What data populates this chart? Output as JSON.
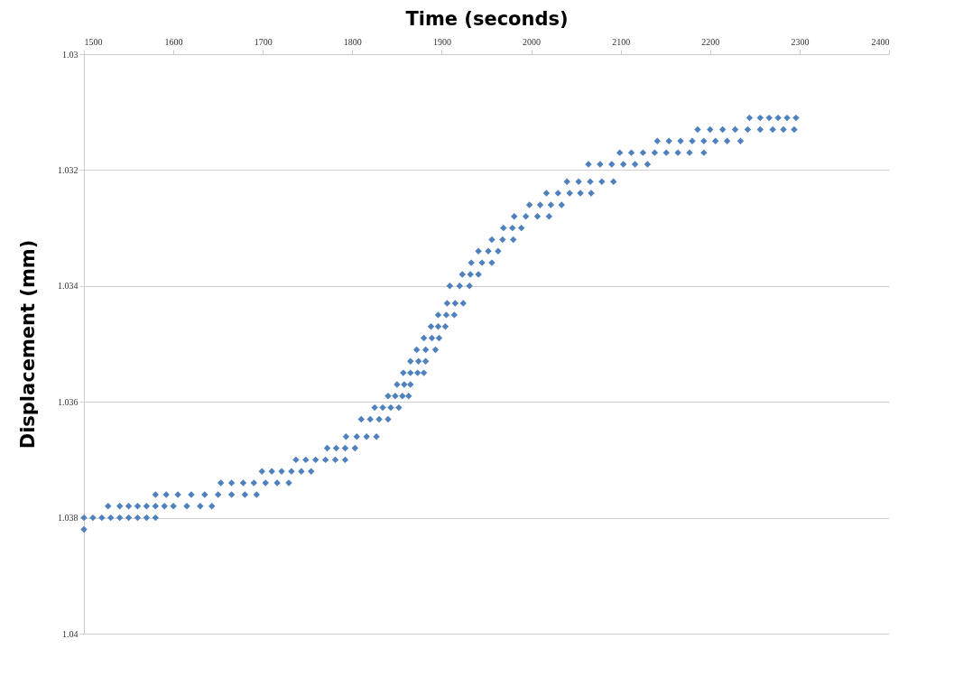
{
  "chart_data": {
    "type": "scatter",
    "xlabel": "Time (seconds)",
    "ylabel": "Displacement (mm)",
    "xlim": [
      1500,
      2400
    ],
    "xticks": [
      1500,
      1600,
      1700,
      1800,
      1900,
      2000,
      2100,
      2200,
      2300,
      2400
    ],
    "ylim": [
      1.04,
      1.03
    ],
    "yticks": [
      1.03,
      1.032,
      1.034,
      1.036,
      1.038,
      1.04
    ],
    "grid": "y",
    "marker": "diamond",
    "legend": false,
    "series": [
      {
        "color": "#4f81bd",
        "x": [
          1500,
          1500,
          1510,
          1520,
          1530,
          1540,
          1550,
          1560,
          1570,
          1580,
          1527,
          1540,
          1550,
          1560,
          1570,
          1580,
          1590,
          1600,
          1615,
          1630,
          1643,
          1580,
          1592,
          1605,
          1620,
          1635,
          1650,
          1665,
          1680,
          1693,
          1653,
          1665,
          1678,
          1690,
          1703,
          1716,
          1729,
          1699,
          1710,
          1721,
          1732,
          1743,
          1754,
          1737,
          1748,
          1759,
          1770,
          1781,
          1792,
          1772,
          1782,
          1792,
          1803,
          1793,
          1805,
          1816,
          1827,
          1810,
          1820,
          1830,
          1840,
          1825,
          1834,
          1843,
          1852,
          1840,
          1848,
          1856,
          1863,
          1850,
          1858,
          1865,
          1857,
          1865,
          1873,
          1880,
          1865,
          1874,
          1882,
          1872,
          1882,
          1893,
          1880,
          1889,
          1897,
          1888,
          1896,
          1904,
          1896,
          1905,
          1914,
          1906,
          1915,
          1924,
          1909,
          1920,
          1931,
          1923,
          1932,
          1941,
          1933,
          1945,
          1956,
          1941,
          1952,
          1963,
          1956,
          1968,
          1980,
          1969,
          1979,
          1989,
          1981,
          1994,
          2007,
          2020,
          1998,
          2010,
          2022,
          2034,
          2017,
          2030,
          2043,
          2055,
          2067,
          2040,
          2053,
          2066,
          2079,
          2092,
          2064,
          2077,
          2090,
          2103,
          2116,
          2130,
          2099,
          2112,
          2125,
          2138,
          2151,
          2164,
          2177,
          2193,
          2141,
          2154,
          2167,
          2180,
          2193,
          2206,
          2219,
          2234,
          2186,
          2200,
          2214,
          2228,
          2242,
          2256,
          2270,
          2282,
          2294,
          2244,
          2256,
          2266,
          2276,
          2286,
          2296
        ],
        "values": [
          1.0382,
          1.038,
          1.038,
          1.038,
          1.038,
          1.038,
          1.038,
          1.038,
          1.038,
          1.038,
          1.0378,
          1.0378,
          1.0378,
          1.0378,
          1.0378,
          1.0378,
          1.0378,
          1.0378,
          1.0378,
          1.0378,
          1.0378,
          1.0376,
          1.0376,
          1.0376,
          1.0376,
          1.0376,
          1.0376,
          1.0376,
          1.0376,
          1.0376,
          1.0374,
          1.0374,
          1.0374,
          1.0374,
          1.0374,
          1.0374,
          1.0374,
          1.0372,
          1.0372,
          1.0372,
          1.0372,
          1.0372,
          1.0372,
          1.037,
          1.037,
          1.037,
          1.037,
          1.037,
          1.037,
          1.0368,
          1.0368,
          1.0368,
          1.0368,
          1.0366,
          1.0366,
          1.0366,
          1.0366,
          1.0363,
          1.0363,
          1.0363,
          1.0363,
          1.0361,
          1.0361,
          1.0361,
          1.0361,
          1.0359,
          1.0359,
          1.0359,
          1.0359,
          1.0357,
          1.0357,
          1.0357,
          1.0355,
          1.0355,
          1.0355,
          1.0355,
          1.0353,
          1.0353,
          1.0353,
          1.0351,
          1.0351,
          1.0351,
          1.0349,
          1.0349,
          1.0349,
          1.0347,
          1.0347,
          1.0347,
          1.0345,
          1.0345,
          1.0345,
          1.0343,
          1.0343,
          1.0343,
          1.034,
          1.034,
          1.034,
          1.0338,
          1.0338,
          1.0338,
          1.0336,
          1.0336,
          1.0336,
          1.0334,
          1.0334,
          1.0334,
          1.0332,
          1.0332,
          1.0332,
          1.033,
          1.033,
          1.033,
          1.0328,
          1.0328,
          1.0328,
          1.0328,
          1.0326,
          1.0326,
          1.0326,
          1.0326,
          1.0324,
          1.0324,
          1.0324,
          1.0324,
          1.0324,
          1.0322,
          1.0322,
          1.0322,
          1.0322,
          1.0322,
          1.0319,
          1.0319,
          1.0319,
          1.0319,
          1.0319,
          1.0319,
          1.0317,
          1.0317,
          1.0317,
          1.0317,
          1.0317,
          1.0317,
          1.0317,
          1.0317,
          1.0315,
          1.0315,
          1.0315,
          1.0315,
          1.0315,
          1.0315,
          1.0315,
          1.0315,
          1.0313,
          1.0313,
          1.0313,
          1.0313,
          1.0313,
          1.0313,
          1.0313,
          1.0313,
          1.0313,
          1.0311,
          1.0311,
          1.0311,
          1.0311,
          1.0311,
          1.0311
        ]
      }
    ]
  }
}
